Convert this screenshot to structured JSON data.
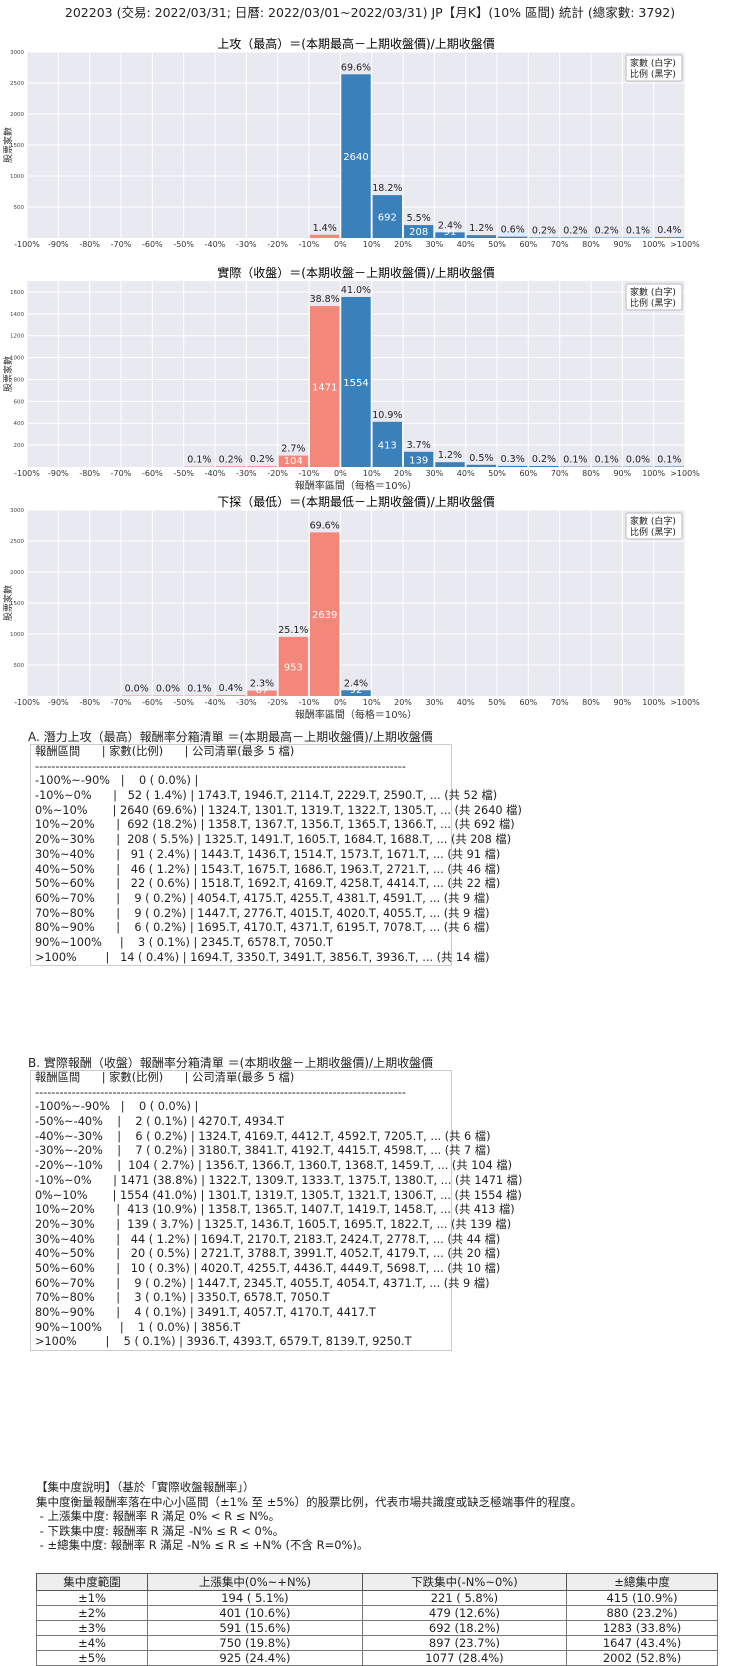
{
  "header": "202203 (交易: 2022/03/31; 日曆: 2022/03/01~2022/03/31) JP【月K】(10% 區間) 統計 (總家數: 3792)",
  "legend_lines": [
    "家數 (白字)",
    "比例 (黑字)"
  ],
  "colors": {
    "up": "#3a80bb",
    "down": "#f4877a",
    "plot_bg": "#e9e9f2"
  },
  "chart_data": [
    {
      "type": "bar",
      "title": "上攻（最高）＝(本期最高－上期收盤價)/上期收盤價",
      "xlabel": "",
      "ylabel": "股票家數",
      "x_ticks": [
        "-100%",
        "-90%",
        "-80%",
        "-70%",
        "-60%",
        "-50%",
        "-40%",
        "-30%",
        "-20%",
        "-10%",
        "0%",
        "10%",
        "20%",
        "30%",
        "40%",
        "50%",
        "60%",
        "70%",
        "80%",
        "90%",
        "100%",
        ">100%"
      ],
      "y_ticks": [
        500,
        1000,
        1500,
        2000,
        2500,
        3000
      ],
      "ylim": [
        0,
        3000
      ],
      "grid": true,
      "legend": "top-right",
      "bars": [
        {
          "bin": "-10%~0%",
          "count": 52,
          "pct": "1.4%",
          "color": "down"
        },
        {
          "bin": "0%~10%",
          "count": 2640,
          "pct": "69.6%",
          "color": "up"
        },
        {
          "bin": "10%~20%",
          "count": 692,
          "pct": "18.2%",
          "color": "up"
        },
        {
          "bin": "20%~30%",
          "count": 208,
          "pct": "5.5%",
          "color": "up"
        },
        {
          "bin": "30%~40%",
          "count": 91,
          "pct": "2.4%",
          "color": "up"
        },
        {
          "bin": "40%~50%",
          "count": 46,
          "pct": "1.2%",
          "color": "up"
        },
        {
          "bin": "50%~60%",
          "count": 22,
          "pct": "0.6%",
          "color": "up"
        },
        {
          "bin": "60%~70%",
          "count": 9,
          "pct": "0.2%",
          "color": "up"
        },
        {
          "bin": "70%~80%",
          "count": 9,
          "pct": "0.2%",
          "color": "up"
        },
        {
          "bin": "80%~90%",
          "count": 6,
          "pct": "0.2%",
          "color": "up"
        },
        {
          "bin": "90%~100%",
          "count": 3,
          "pct": "0.1%",
          "color": "up"
        },
        {
          "bin": ">100%",
          "count": 14,
          "pct": "0.4%",
          "color": "up"
        }
      ]
    },
    {
      "type": "bar",
      "title": "實際（收盤）＝(本期收盤－上期收盤價)/上期收盤價",
      "xlabel": "報酬率區間（每格＝10%）",
      "ylabel": "股票家數",
      "x_ticks": [
        "-100%",
        "-90%",
        "-80%",
        "-70%",
        "-60%",
        "-50%",
        "-40%",
        "-30%",
        "-20%",
        "-10%",
        "0%",
        "10%",
        "20%",
        "30%",
        "40%",
        "50%",
        "60%",
        "70%",
        "80%",
        "90%",
        "100%",
        ">100%"
      ],
      "y_ticks": [
        200,
        400,
        600,
        800,
        1000,
        1200,
        1400,
        1600
      ],
      "ylim": [
        0,
        1700
      ],
      "grid": true,
      "legend": "top-right",
      "bars": [
        {
          "bin": "-50%~-40%",
          "count": 2,
          "pct": "0.1%",
          "color": "down"
        },
        {
          "bin": "-40%~-30%",
          "count": 6,
          "pct": "0.2%",
          "color": "down"
        },
        {
          "bin": "-30%~-20%",
          "count": 7,
          "pct": "0.2%",
          "color": "down"
        },
        {
          "bin": "-20%~-10%",
          "count": 104,
          "pct": "2.7%",
          "color": "down"
        },
        {
          "bin": "-10%~0%",
          "count": 1471,
          "pct": "38.8%",
          "color": "down"
        },
        {
          "bin": "0%~10%",
          "count": 1554,
          "pct": "41.0%",
          "color": "up"
        },
        {
          "bin": "10%~20%",
          "count": 413,
          "pct": "10.9%",
          "color": "up"
        },
        {
          "bin": "20%~30%",
          "count": 139,
          "pct": "3.7%",
          "color": "up"
        },
        {
          "bin": "30%~40%",
          "count": 44,
          "pct": "1.2%",
          "color": "up"
        },
        {
          "bin": "40%~50%",
          "count": 20,
          "pct": "0.5%",
          "color": "up"
        },
        {
          "bin": "50%~60%",
          "count": 10,
          "pct": "0.3%",
          "color": "up"
        },
        {
          "bin": "60%~70%",
          "count": 9,
          "pct": "0.2%",
          "color": "up"
        },
        {
          "bin": "70%~80%",
          "count": 3,
          "pct": "0.1%",
          "color": "up"
        },
        {
          "bin": "80%~90%",
          "count": 4,
          "pct": "0.1%",
          "color": "up"
        },
        {
          "bin": "90%~100%",
          "count": 1,
          "pct": "0.0%",
          "color": "up"
        },
        {
          "bin": ">100%",
          "count": 5,
          "pct": "0.1%",
          "color": "up"
        }
      ]
    },
    {
      "type": "bar",
      "title": "下探（最低）＝(本期最低－上期收盤價)/上期收盤價",
      "xlabel": "報酬率區間（每格＝10%）",
      "ylabel": "股票家數",
      "x_ticks": [
        "-100%",
        "-90%",
        "-80%",
        "-70%",
        "-60%",
        "-50%",
        "-40%",
        "-30%",
        "-20%",
        "-10%",
        "0%",
        "10%",
        "20%",
        "30%",
        "40%",
        "50%",
        "60%",
        "70%",
        "80%",
        "90%",
        "100%",
        ">100%"
      ],
      "y_ticks": [
        500,
        1000,
        1500,
        2000,
        2500,
        3000
      ],
      "ylim": [
        0,
        3000
      ],
      "grid": true,
      "legend": "top-right",
      "bars": [
        {
          "bin": "-70%~-60%",
          "count": 1,
          "pct": "0.0%",
          "color": "down"
        },
        {
          "bin": "-60%~-50%",
          "count": 1,
          "pct": "0.0%",
          "color": "down"
        },
        {
          "bin": "-50%~-40%",
          "count": 4,
          "pct": "0.1%",
          "color": "down"
        },
        {
          "bin": "-40%~-30%",
          "count": 15,
          "pct": "0.4%",
          "color": "down"
        },
        {
          "bin": "-30%~-20%",
          "count": 87,
          "pct": "2.3%",
          "color": "down"
        },
        {
          "bin": "-20%~-10%",
          "count": 953,
          "pct": "25.1%",
          "color": "down"
        },
        {
          "bin": "-10%~0%",
          "count": 2639,
          "pct": "69.6%",
          "color": "down"
        },
        {
          "bin": "0%~10%",
          "count": 92,
          "pct": "2.4%",
          "color": "up"
        }
      ]
    }
  ],
  "section_a": {
    "title": "A. 潛力上攻（最高）報酬率分箱清單 ＝(本期最高－上期收盤價)/上期收盤價",
    "lines": [
      "報酬區間      | 家數(比例)      | 公司清單(最多 5 檔)",
      "-------------------------------------------------------------------------------------------",
      "-100%~-90%   |    0 ( 0.0%) |",
      "-10%~0%      |   52 ( 1.4%) | 1743.T, 1946.T, 2114.T, 2229.T, 2590.T, ... (共 52 檔)",
      "0%~10%       | 2640 (69.6%) | 1324.T, 1301.T, 1319.T, 1322.T, 1305.T, ... (共 2640 檔)",
      "10%~20%      |  692 (18.2%) | 1358.T, 1367.T, 1356.T, 1365.T, 1366.T, ... (共 692 檔)",
      "20%~30%      |  208 ( 5.5%) | 1325.T, 1491.T, 1605.T, 1684.T, 1688.T, ... (共 208 檔)",
      "30%~40%      |   91 ( 2.4%) | 1443.T, 1436.T, 1514.T, 1573.T, 1671.T, ... (共 91 檔)",
      "40%~50%      |   46 ( 1.2%) | 1543.T, 1675.T, 1686.T, 1963.T, 2721.T, ... (共 46 檔)",
      "50%~60%      |   22 ( 0.6%) | 1518.T, 1692.T, 4169.T, 4258.T, 4414.T, ... (共 22 檔)",
      "60%~70%      |    9 ( 0.2%) | 4054.T, 4175.T, 4255.T, 4381.T, 4591.T, ... (共 9 檔)",
      "70%~80%      |    9 ( 0.2%) | 1447.T, 2776.T, 4015.T, 4020.T, 4055.T, ... (共 9 檔)",
      "80%~90%      |    6 ( 0.2%) | 1695.T, 4170.T, 4371.T, 6195.T, 7078.T, ... (共 6 檔)",
      "90%~100%     |    3 ( 0.1%) | 2345.T, 6578.T, 7050.T",
      ">100%        |   14 ( 0.4%) | 1694.T, 3350.T, 3491.T, 3856.T, 3936.T, ... (共 14 檔)"
    ]
  },
  "section_b": {
    "title": "B. 實際報酬（收盤）報酬率分箱清單 ＝(本期收盤－上期收盤價)/上期收盤價",
    "lines": [
      "報酬區間      | 家數(比例)      | 公司清單(最多 5 檔)",
      "-------------------------------------------------------------------------------------------",
      "-100%~-90%   |    0 ( 0.0%) |",
      "-50%~-40%    |    2 ( 0.1%) | 4270.T, 4934.T",
      "-40%~-30%    |    6 ( 0.2%) | 1324.T, 4169.T, 4412.T, 4592.T, 7205.T, ... (共 6 檔)",
      "-30%~-20%    |    7 ( 0.2%) | 3180.T, 3841.T, 4192.T, 4415.T, 4598.T, ... (共 7 檔)",
      "-20%~-10%    |  104 ( 2.7%) | 1356.T, 1366.T, 1360.T, 1368.T, 1459.T, ... (共 104 檔)",
      "-10%~0%      | 1471 (38.8%) | 1322.T, 1309.T, 1333.T, 1375.T, 1380.T, ... (共 1471 檔)",
      "0%~10%       | 1554 (41.0%) | 1301.T, 1319.T, 1305.T, 1321.T, 1306.T, ... (共 1554 檔)",
      "10%~20%      |  413 (10.9%) | 1358.T, 1365.T, 1407.T, 1419.T, 1458.T, ... (共 413 檔)",
      "20%~30%      |  139 ( 3.7%) | 1325.T, 1436.T, 1605.T, 1695.T, 1822.T, ... (共 139 檔)",
      "30%~40%      |   44 ( 1.2%) | 1694.T, 2170.T, 2183.T, 2424.T, 2778.T, ... (共 44 檔)",
      "40%~50%      |   20 ( 0.5%) | 2721.T, 3788.T, 3991.T, 4052.T, 4179.T, ... (共 20 檔)",
      "50%~60%      |   10 ( 0.3%) | 4020.T, 4255.T, 4436.T, 4449.T, 5698.T, ... (共 10 檔)",
      "60%~70%      |    9 ( 0.2%) | 1447.T, 2345.T, 4055.T, 4054.T, 4371.T, ... (共 9 檔)",
      "70%~80%      |    3 ( 0.1%) | 3350.T, 6578.T, 7050.T",
      "80%~90%      |    4 ( 0.1%) | 3491.T, 4057.T, 4170.T, 4417.T",
      "90%~100%     |    1 ( 0.0%) | 3856.T",
      ">100%        |    5 ( 0.1%) | 3936.T, 4393.T, 6579.T, 8139.T, 9250.T"
    ]
  },
  "concentration": {
    "lines": [
      "【集中度說明】（基於「實際收盤報酬率」）",
      "集中度衡量報酬率落在中心小區間（±1% 至 ±5%）的股票比例，代表市場共識度或缺乏極端事件的程度。",
      " - 上漲集中度: 報酬率 R 滿足 0% < R ≤ N%。",
      " - 下跌集中度: 報酬率 R 滿足 -N% ≤ R < 0%。",
      " - ±總集中度: 報酬率 R 滿足 -N% ≤ R ≤ +N% (不含 R=0%)。"
    ],
    "headers": [
      "集中度範圍",
      "上漲集中(0%~+N%)",
      "下跌集中(-N%~0%)",
      "±總集中度"
    ],
    "rows": [
      [
        "±1%",
        "194 ( 5.1%)",
        "221 ( 5.8%)",
        "415 (10.9%)"
      ],
      [
        "±2%",
        "401 (10.6%)",
        "479 (12.6%)",
        "880 (23.2%)"
      ],
      [
        "±3%",
        "591 (15.6%)",
        "692 (18.2%)",
        "1283 (33.8%)"
      ],
      [
        "±4%",
        "750 (19.8%)",
        "897 (23.7%)",
        "1647 (43.4%)"
      ],
      [
        "±5%",
        "925 (24.4%)",
        "1077 (28.4%)",
        "2002 (52.8%)"
      ]
    ]
  }
}
